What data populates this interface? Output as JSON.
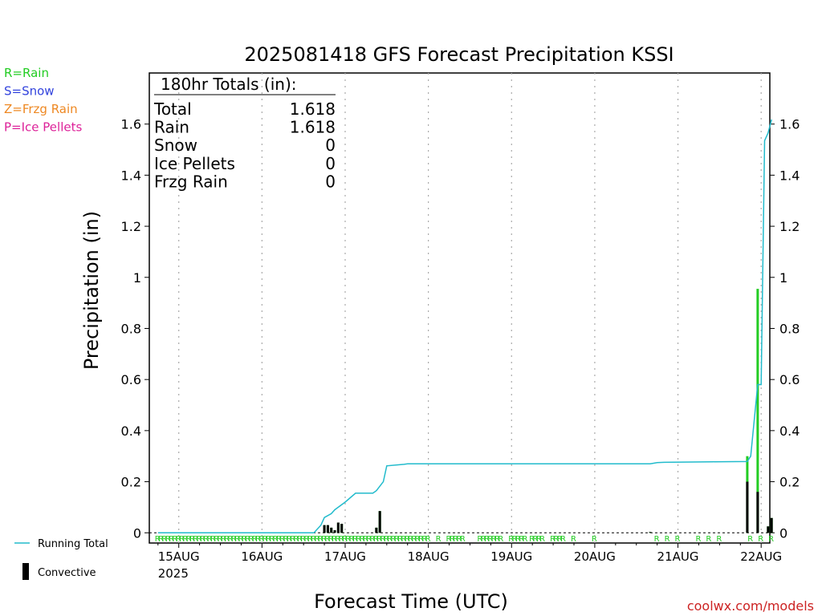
{
  "chart_data": {
    "type": "bar",
    "title": "2025081418 GFS Forecast Precipitation KSSI",
    "xlabel": "Forecast Time (UTC)",
    "ylabel": "Precipitation (in)",
    "ylim": [
      -0.04,
      1.8
    ],
    "y_ticks": [
      0,
      0.2,
      0.4,
      0.6,
      0.8,
      1,
      1.2,
      1.4,
      1.6
    ],
    "y_tick_labels": [
      "0",
      "0.2",
      "0.4",
      "0.6",
      "0.8",
      "1",
      "1.2",
      "1.4",
      "1.6"
    ],
    "x_range_hours": [
      -2.5,
      176.5
    ],
    "x_ticks": [
      {
        "hour": 6,
        "label": "15AUG",
        "sub": "2025"
      },
      {
        "hour": 30,
        "label": "16AUG",
        "sub": ""
      },
      {
        "hour": 54,
        "label": "17AUG",
        "sub": ""
      },
      {
        "hour": 78,
        "label": "18AUG",
        "sub": ""
      },
      {
        "hour": 102,
        "label": "19AUG",
        "sub": ""
      },
      {
        "hour": 126,
        "label": "20AUG",
        "sub": ""
      },
      {
        "hour": 150,
        "label": "21AUG",
        "sub": ""
      },
      {
        "hour": 174,
        "label": "22AUG",
        "sub": ""
      }
    ],
    "grid": "dotted vertical",
    "legend_types": [
      {
        "label": "R=Rain",
        "color": "#22cc22"
      },
      {
        "label": "S=Snow",
        "color": "#3344dd"
      },
      {
        "label": "Z=Frzg Rain",
        "color": "#ee8822"
      },
      {
        "label": "P=Ice Pellets",
        "color": "#dd2299"
      }
    ],
    "legend_lines": [
      {
        "label": "Running Total",
        "color": "#22bbcc"
      },
      {
        "label": "Convective",
        "color": "#000000"
      }
    ],
    "totals": {
      "header": "180hr Totals (in):",
      "rows": [
        {
          "label": "Total",
          "value": "1.618"
        },
        {
          "label": "Rain",
          "value": "1.618"
        },
        {
          "label": "Snow",
          "value": "0"
        },
        {
          "label": "Ice Pellets",
          "value": "0"
        },
        {
          "label": "Frzg Rain",
          "value": "0"
        }
      ]
    },
    "series": [
      {
        "name": "Running Total",
        "color": "#22bbcc",
        "x": [
          0,
          45,
          47,
          48,
          50,
          51,
          54,
          57,
          60,
          62,
          63,
          65,
          66,
          71,
          72,
          75,
          78,
          100,
          120,
          142,
          144,
          146,
          160,
          170,
          171,
          173,
          174,
          175,
          176,
          177
        ],
        "y": [
          0,
          0,
          0.03,
          0.06,
          0.075,
          0.09,
          0.12,
          0.155,
          0.155,
          0.155,
          0.165,
          0.2,
          0.262,
          0.268,
          0.27,
          0.27,
          0.27,
          0.27,
          0.27,
          0.27,
          0.275,
          0.276,
          0.278,
          0.279,
          0.3,
          0.58,
          0.58,
          1.535,
          1.565,
          1.618
        ]
      },
      {
        "name": "Rain",
        "color": "#22cc22",
        "x": [
          48,
          49,
          50,
          51,
          52,
          53,
          63,
          64,
          142,
          170,
          173,
          176,
          177
        ],
        "y": [
          0.03,
          0.03,
          0.02,
          0.01,
          0.04,
          0.035,
          0.02,
          0.085,
          0.003,
          0.3,
          0.955,
          0.025,
          0.058
        ]
      },
      {
        "name": "Convective",
        "color": "#000000",
        "x": [
          48,
          49,
          50,
          51,
          52,
          53,
          63,
          64,
          142,
          170,
          173,
          176,
          177
        ],
        "y": [
          0.03,
          0.03,
          0.02,
          0.01,
          0.04,
          0.035,
          0.02,
          0.085,
          0.003,
          0.2,
          0.16,
          0.025,
          0.058
        ]
      }
    ],
    "precip_type_marks": {
      "letter": "R",
      "color": "#22cc22",
      "hours": [
        0,
        1,
        2,
        3,
        4,
        5,
        6,
        7,
        8,
        9,
        10,
        11,
        12,
        13,
        14,
        15,
        16,
        17,
        18,
        19,
        20,
        21,
        22,
        23,
        24,
        25,
        26,
        27,
        28,
        29,
        30,
        31,
        32,
        33,
        34,
        35,
        36,
        37,
        38,
        39,
        40,
        41,
        42,
        43,
        44,
        45,
        46,
        47,
        48,
        49,
        50,
        51,
        52,
        53,
        54,
        55,
        56,
        57,
        58,
        59,
        60,
        61,
        62,
        63,
        64,
        65,
        66,
        67,
        68,
        69,
        70,
        71,
        72,
        73,
        74,
        75,
        76,
        77,
        78,
        81,
        84,
        85,
        86,
        87,
        88,
        93,
        94,
        95,
        96,
        97,
        98,
        99,
        102,
        103,
        104,
        105,
        106,
        108,
        109,
        110,
        111,
        114,
        115,
        116,
        117,
        120,
        126,
        144,
        147,
        150,
        156,
        159,
        162,
        171,
        174,
        177
      ]
    },
    "watermark": "coolwx.com/models"
  }
}
